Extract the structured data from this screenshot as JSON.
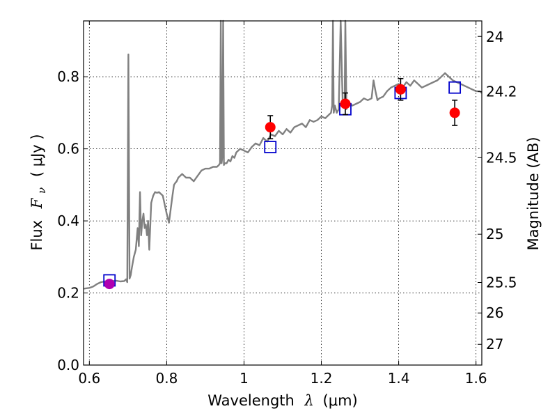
{
  "chart_data": {
    "type": "scatter",
    "xlabel": {
      "prefix": "Wavelength",
      "symbol": "λ",
      "unit": "(μm)"
    },
    "ylabel": {
      "prefix": "Flux",
      "symbol_main": "F",
      "symbol_sub": "ν",
      "unit": "( μJy )"
    },
    "ylabel_right": "Magnitude (AB)",
    "xlim": [
      0.585,
      1.615
    ],
    "ylim": [
      0.0,
      0.955
    ],
    "x_ticks": [
      0.6,
      0.8,
      1.0,
      1.2,
      1.4,
      1.6
    ],
    "x_tick_labels": [
      "0.6",
      "0.8",
      "1",
      "1.2",
      "1.4",
      "1.6"
    ],
    "y_ticks": [
      0.0,
      0.2,
      0.4,
      0.6,
      0.8
    ],
    "y_tick_labels": [
      "0.0",
      "0.2",
      "0.4",
      "0.6",
      "0.8"
    ],
    "right_ticks": [
      {
        "label": "24",
        "magnitude": 24.0
      },
      {
        "label": "24.2",
        "magnitude": 24.2
      },
      {
        "label": "24.5",
        "magnitude": 24.5
      },
      {
        "label": "25",
        "magnitude": 25.0
      },
      {
        "label": "25.5",
        "magnitude": 25.5
      },
      {
        "label": "26",
        "magnitude": 26.0
      },
      {
        "label": "27",
        "magnitude": 27.0
      }
    ],
    "grid": true,
    "colors": {
      "model": "#808080",
      "observed": "#ff0000",
      "synthetic": "#0000cc",
      "overlap": "#b000b0",
      "errorbar": "#000000"
    },
    "series": [
      {
        "kind": "model_spectrum",
        "x": [
          0.586,
          0.6,
          0.61,
          0.62,
          0.63,
          0.64,
          0.65,
          0.66,
          0.67,
          0.68,
          0.69,
          0.695,
          0.698,
          0.701,
          0.704,
          0.707,
          0.71,
          0.715,
          0.72,
          0.725,
          0.728,
          0.731,
          0.734,
          0.737,
          0.74,
          0.743,
          0.746,
          0.749,
          0.752,
          0.755,
          0.76,
          0.765,
          0.77,
          0.775,
          0.78,
          0.79,
          0.8,
          0.806,
          0.81,
          0.815,
          0.819,
          0.822,
          0.826,
          0.83,
          0.84,
          0.85,
          0.86,
          0.87,
          0.88,
          0.89,
          0.9,
          0.91,
          0.92,
          0.93,
          0.935,
          0.938,
          0.94,
          0.942,
          0.944,
          0.946,
          0.948,
          0.95,
          0.955,
          0.96,
          0.965,
          0.97,
          0.975,
          0.98,
          0.99,
          1.0,
          1.01,
          1.02,
          1.03,
          1.04,
          1.05,
          1.06,
          1.07,
          1.08,
          1.09,
          1.1,
          1.11,
          1.12,
          1.13,
          1.14,
          1.15,
          1.16,
          1.17,
          1.18,
          1.19,
          1.2,
          1.21,
          1.22,
          1.225,
          1.228,
          1.23,
          1.232,
          1.235,
          1.24,
          1.245,
          1.25,
          1.255,
          1.26,
          1.262,
          1.265,
          1.27,
          1.28,
          1.29,
          1.3,
          1.31,
          1.32,
          1.33,
          1.335,
          1.34,
          1.345,
          1.35,
          1.36,
          1.37,
          1.38,
          1.39,
          1.4,
          1.41,
          1.42,
          1.43,
          1.44,
          1.45,
          1.46,
          1.47,
          1.48,
          1.49,
          1.5,
          1.51,
          1.52,
          1.53,
          1.54,
          1.55,
          1.56,
          1.57,
          1.58,
          1.59,
          1.6,
          1.61,
          1.615
        ],
        "y": [
          0.212,
          0.214,
          0.218,
          0.225,
          0.23,
          0.232,
          0.233,
          0.233,
          0.234,
          0.232,
          0.233,
          0.238,
          0.23,
          0.862,
          0.24,
          0.25,
          0.27,
          0.3,
          0.32,
          0.38,
          0.33,
          0.48,
          0.36,
          0.4,
          0.42,
          0.38,
          0.39,
          0.36,
          0.4,
          0.32,
          0.45,
          0.47,
          0.48,
          0.478,
          0.48,
          0.47,
          0.42,
          0.395,
          0.43,
          0.47,
          0.5,
          0.505,
          0.51,
          0.52,
          0.53,
          0.52,
          0.52,
          0.51,
          0.525,
          0.54,
          0.545,
          0.545,
          0.55,
          0.55,
          0.555,
          0.56,
          0.96,
          0.56,
          0.58,
          0.96,
          0.555,
          0.56,
          0.56,
          0.57,
          0.565,
          0.58,
          0.575,
          0.59,
          0.6,
          0.595,
          0.59,
          0.605,
          0.615,
          0.61,
          0.63,
          0.62,
          0.64,
          0.635,
          0.65,
          0.64,
          0.655,
          0.645,
          0.66,
          0.665,
          0.67,
          0.66,
          0.68,
          0.675,
          0.68,
          0.69,
          0.685,
          0.695,
          0.7,
          0.72,
          0.96,
          0.7,
          0.72,
          0.7,
          0.71,
          0.96,
          0.73,
          0.72,
          0.96,
          0.71,
          0.73,
          0.72,
          0.725,
          0.73,
          0.74,
          0.735,
          0.74,
          0.79,
          0.76,
          0.735,
          0.74,
          0.745,
          0.76,
          0.77,
          0.775,
          0.78,
          0.77,
          0.785,
          0.775,
          0.79,
          0.78,
          0.77,
          0.775,
          0.78,
          0.785,
          0.79,
          0.8,
          0.81,
          0.8,
          0.79,
          0.785,
          0.78,
          0.775,
          0.77,
          0.765,
          0.76,
          0.76,
          0.755
        ]
      },
      {
        "kind": "synthetic_photometry",
        "marker": "open_square",
        "x": [
          0.652,
          1.068,
          1.262,
          1.405,
          1.545
        ],
        "y": [
          0.235,
          0.605,
          0.71,
          0.755,
          0.77
        ]
      },
      {
        "kind": "observed_photometry",
        "marker": "filled_circle",
        "x": [
          0.652,
          1.068,
          1.262,
          1.405,
          1.545
        ],
        "y": [
          0.225,
          0.66,
          0.725,
          0.765,
          0.7
        ],
        "yerr": [
          0.01,
          0.032,
          0.03,
          0.03,
          0.035
        ]
      }
    ]
  }
}
